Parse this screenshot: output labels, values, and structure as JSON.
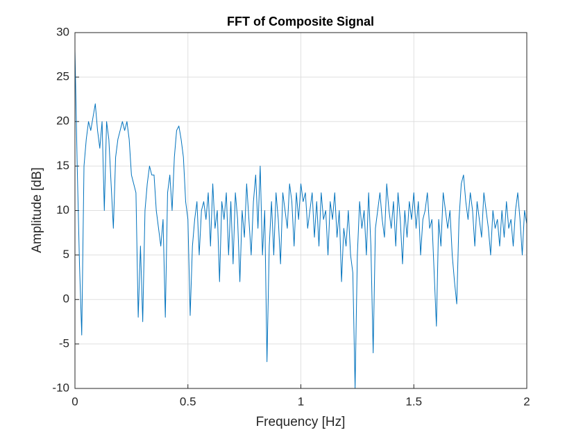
{
  "chart_data": {
    "type": "line",
    "title": "FFT of Composite Signal",
    "x_label": "Frequency [Hz]",
    "y_label": "Amplitude [dB]",
    "x": [
      0,
      0.01,
      0.02,
      0.03,
      0.04,
      0.05,
      0.06,
      0.07,
      0.08,
      0.09,
      0.1,
      0.11,
      0.12,
      0.13,
      0.14,
      0.15,
      0.16,
      0.17,
      0.18,
      0.19,
      0.2,
      0.21,
      0.22,
      0.23,
      0.24,
      0.25,
      0.26,
      0.27,
      0.28,
      0.29,
      0.3,
      0.31,
      0.32,
      0.33,
      0.34,
      0.35,
      0.36,
      0.37,
      0.38,
      0.39,
      0.4,
      0.41,
      0.42,
      0.43,
      0.44,
      0.45,
      0.46,
      0.47,
      0.48,
      0.49,
      0.5,
      0.51,
      0.52,
      0.53,
      0.54,
      0.55,
      0.56,
      0.57,
      0.58,
      0.59,
      0.6,
      0.61,
      0.62,
      0.63,
      0.64,
      0.65,
      0.66,
      0.67,
      0.68,
      0.69,
      0.7,
      0.71,
      0.72,
      0.73,
      0.74,
      0.75,
      0.76,
      0.77,
      0.78,
      0.79,
      0.8,
      0.81,
      0.82,
      0.83,
      0.84,
      0.85,
      0.86,
      0.87,
      0.88,
      0.89,
      0.9,
      0.91,
      0.92,
      0.93,
      0.94,
      0.95,
      0.96,
      0.97,
      0.98,
      0.99,
      1,
      1.01,
      1.02,
      1.03,
      1.04,
      1.05,
      1.06,
      1.07,
      1.08,
      1.09,
      1.1,
      1.11,
      1.12,
      1.13,
      1.14,
      1.15,
      1.16,
      1.17,
      1.18,
      1.19,
      1.2,
      1.21,
      1.22,
      1.23,
      1.24,
      1.25,
      1.26,
      1.27,
      1.28,
      1.29,
      1.3,
      1.31,
      1.32,
      1.33,
      1.34,
      1.35,
      1.36,
      1.37,
      1.38,
      1.39,
      1.4,
      1.41,
      1.42,
      1.43,
      1.44,
      1.45,
      1.46,
      1.47,
      1.48,
      1.49,
      1.5,
      1.51,
      1.52,
      1.53,
      1.54,
      1.55,
      1.56,
      1.57,
      1.58,
      1.59,
      1.6,
      1.61,
      1.62,
      1.63,
      1.64,
      1.65,
      1.66,
      1.67,
      1.68,
      1.69,
      1.7,
      1.71,
      1.72,
      1.73,
      1.74,
      1.75,
      1.76,
      1.77,
      1.78,
      1.79,
      1.8,
      1.81,
      1.82,
      1.83,
      1.84,
      1.85,
      1.86,
      1.87,
      1.88,
      1.89,
      1.9,
      1.91,
      1.92,
      1.93,
      1.94,
      1.95,
      1.96,
      1.97,
      1.98,
      1.99,
      2
    ],
    "series": [
      {
        "color": "#0072bd",
        "values": [
          28,
          15,
          4,
          -4,
          15,
          18,
          20,
          19,
          20.5,
          22,
          19,
          17,
          20,
          10,
          20,
          18,
          13,
          8,
          16,
          18,
          19,
          20,
          19,
          20,
          18,
          14,
          13,
          12,
          -2,
          6,
          -2.5,
          10,
          13,
          15,
          14,
          14,
          10,
          8,
          6,
          9,
          -2,
          12,
          14,
          10,
          16,
          19,
          19.5,
          18,
          16,
          11,
          9,
          -1.8,
          6,
          9,
          11,
          5,
          10,
          11,
          9,
          12,
          6,
          13,
          8,
          10,
          2,
          11,
          9,
          12,
          5,
          11,
          4,
          12,
          9,
          2,
          10,
          7,
          13,
          9,
          5,
          11,
          14,
          8,
          15,
          5,
          10,
          -7,
          6,
          11,
          5,
          12,
          9,
          4,
          12,
          10,
          8,
          13,
          11,
          6,
          12,
          9,
          13,
          11,
          12,
          8,
          10,
          12,
          7,
          11,
          6,
          12,
          9,
          10,
          5,
          11,
          9,
          12,
          7,
          10,
          2,
          8,
          6,
          10,
          5,
          3,
          -10,
          5,
          11,
          8,
          10,
          5,
          12,
          6,
          -6,
          8,
          10,
          12,
          9,
          7,
          13,
          10,
          8,
          11,
          6,
          12,
          9,
          4,
          10,
          7,
          11,
          9,
          12,
          8,
          11,
          5,
          9,
          10,
          12,
          8,
          9,
          3,
          -3,
          9,
          6,
          12,
          10,
          8,
          10,
          5,
          2,
          -0.5,
          9,
          13,
          14,
          11,
          9,
          12,
          10,
          6,
          11,
          9,
          7,
          12,
          10,
          8,
          5,
          10,
          8,
          9,
          6,
          10,
          7,
          11,
          8,
          9,
          6,
          10,
          12,
          9,
          5,
          10,
          8.5
        ]
      }
    ],
    "xlim": [
      0,
      2
    ],
    "xticks": [
      0,
      0.5,
      1,
      1.5,
      2
    ],
    "ylim": [
      -10,
      30
    ],
    "yticks": [
      -10,
      -5,
      0,
      5,
      10,
      15,
      20,
      25,
      30
    ],
    "grid": true
  }
}
